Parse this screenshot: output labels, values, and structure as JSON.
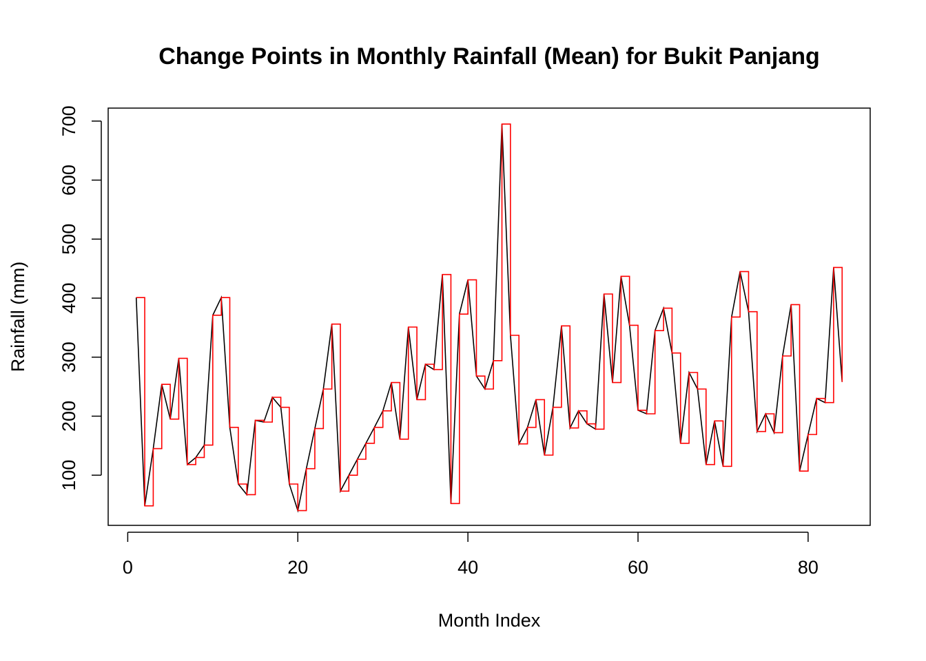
{
  "chart_data": {
    "type": "line",
    "title": "Change Points in Monthly Rainfall (Mean) for Bukit Panjang",
    "xlabel": "Month Index",
    "ylabel": "Rainfall (mm)",
    "xlim": [
      -2.3,
      87.3
    ],
    "ylim": [
      15,
      722
    ],
    "x_ticks": [
      0,
      20,
      40,
      60,
      80
    ],
    "y_ticks": [
      100,
      200,
      300,
      400,
      500,
      600,
      700
    ],
    "x": [
      1,
      2,
      3,
      4,
      5,
      6,
      7,
      8,
      9,
      10,
      11,
      12,
      13,
      14,
      15,
      16,
      17,
      18,
      19,
      20,
      21,
      22,
      23,
      24,
      25,
      26,
      27,
      28,
      29,
      30,
      31,
      32,
      33,
      34,
      35,
      36,
      37,
      38,
      39,
      40,
      41,
      42,
      43,
      44,
      45,
      46,
      47,
      48,
      49,
      50,
      51,
      52,
      53,
      54,
      55,
      56,
      57,
      58,
      59,
      60,
      61,
      62,
      63,
      64,
      65,
      66,
      67,
      68,
      69,
      70,
      71,
      72,
      73,
      74,
      75,
      76,
      77,
      78,
      79,
      80,
      81,
      82,
      83,
      84
    ],
    "series": [
      {
        "color": "#000000",
        "style": "line",
        "values": [
          401,
          48,
          145,
          254,
          195,
          298,
          118,
          130,
          151,
          371,
          401,
          181,
          85,
          67,
          193,
          190,
          232,
          215,
          85,
          40,
          111,
          179,
          246,
          356,
          73,
          100,
          127,
          154,
          181,
          209,
          257,
          161,
          351,
          228,
          288,
          279,
          440,
          52,
          373,
          431,
          268,
          246,
          294,
          695,
          337,
          153,
          181,
          228,
          134,
          215,
          353,
          180,
          209,
          187,
          178,
          407,
          257,
          437,
          354,
          210,
          204,
          345,
          383,
          307,
          154,
          274,
          246,
          118,
          192,
          115,
          368,
          445,
          377,
          174,
          204,
          172,
          302,
          389,
          107,
          169,
          230,
          223,
          452,
          258
        ]
      },
      {
        "color": "#ff0000",
        "style": "steps",
        "values": [
          401,
          48,
          145,
          254,
          195,
          298,
          118,
          130,
          151,
          371,
          401,
          181,
          85,
          67,
          193,
          190,
          232,
          215,
          85,
          40,
          111,
          179,
          246,
          356,
          73,
          100,
          127,
          154,
          181,
          209,
          257,
          161,
          351,
          228,
          288,
          279,
          440,
          52,
          373,
          431,
          268,
          246,
          294,
          695,
          337,
          153,
          181,
          228,
          134,
          215,
          353,
          180,
          209,
          187,
          178,
          407,
          257,
          437,
          354,
          210,
          204,
          345,
          383,
          307,
          154,
          274,
          246,
          118,
          192,
          115,
          368,
          445,
          377,
          174,
          204,
          172,
          302,
          389,
          107,
          169,
          230,
          223,
          452,
          258
        ]
      }
    ],
    "grid": false,
    "legend": "none"
  }
}
